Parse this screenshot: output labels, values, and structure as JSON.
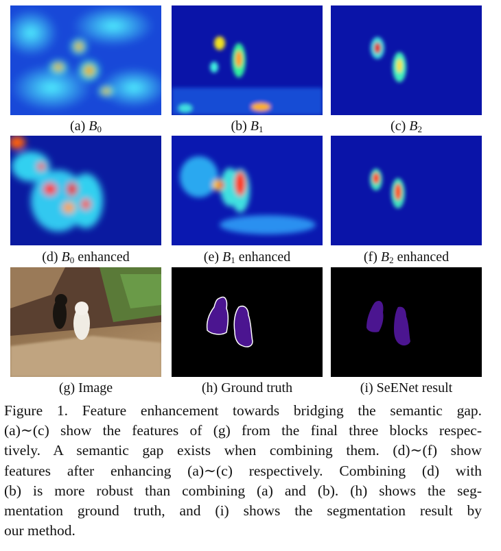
{
  "panels": [
    {
      "id": "a",
      "letter": "(a)",
      "symbol": "B",
      "sub": "0",
      "suffix": ""
    },
    {
      "id": "b",
      "letter": "(b)",
      "symbol": "B",
      "sub": "1",
      "suffix": ""
    },
    {
      "id": "c",
      "letter": "(c)",
      "symbol": "B",
      "sub": "2",
      "suffix": ""
    },
    {
      "id": "d",
      "letter": "(d)",
      "symbol": "B",
      "sub": "0",
      "suffix": "enhanced"
    },
    {
      "id": "e",
      "letter": "(e)",
      "symbol": "B",
      "sub": "1",
      "suffix": "enhanced"
    },
    {
      "id": "f",
      "letter": "(f)",
      "symbol": "B",
      "sub": "2",
      "suffix": "enhanced"
    },
    {
      "id": "g",
      "text": "(g) Image"
    },
    {
      "id": "h",
      "text": "(h) Ground truth"
    },
    {
      "id": "i",
      "text": "(i) SeENet result"
    }
  ],
  "caption_lines": [
    "Figure 1. Feature enhancement towards bridging the semantic gap.",
    "(a)∼(c) show the features of (g) from the final three blocks respec-",
    "tively. A semantic gap exists when combining them. (d)∼(f) show",
    "features after enhancing (a)∼(c) respectively. Combining (d) with",
    "(b) is more robust than combining (a) and (b). (h) shows the seg-",
    "mentation ground truth, and (i) shows the segmentation result by",
    "our method."
  ],
  "colors": {
    "heatmap_low": "#0a14a8",
    "heatmap_mid": "#1fd0e8",
    "heatmap_high": "#e8201a",
    "mask_fill": "#4b1590",
    "mask_bg": "#000000"
  }
}
